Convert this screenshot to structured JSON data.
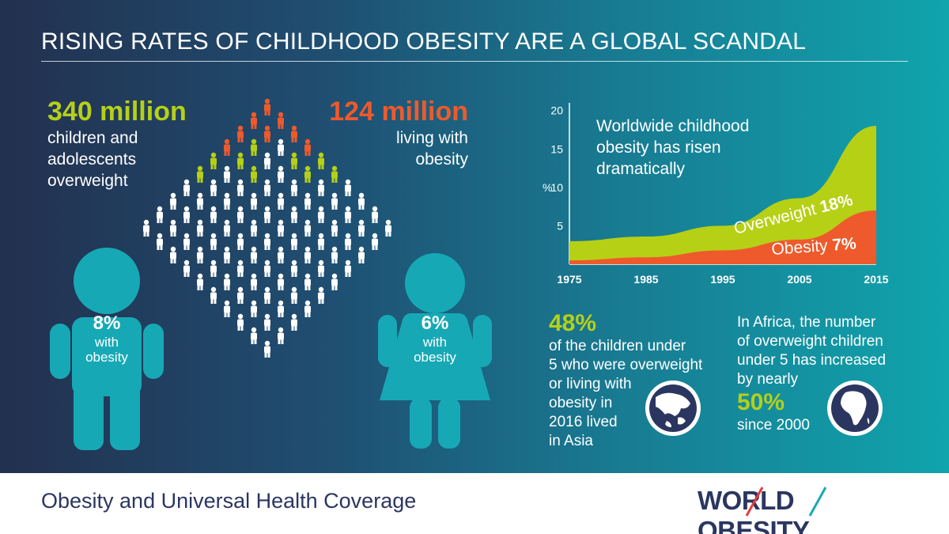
{
  "title": "RISING RATES OF CHILDHOOD OBESITY ARE A GLOBAL SCANDAL",
  "colors": {
    "overweight": "#b6d016",
    "obesity": "#ee5a2b",
    "figure": "#16a9b5",
    "navy": "#2b3660"
  },
  "overweight_stat": {
    "value": "340 million",
    "line1": "children and",
    "line2": "adolescents",
    "line3": "overweight"
  },
  "obesity_stat": {
    "value": "124 million",
    "line1": "living with",
    "line2": "obesity"
  },
  "boy": {
    "icon": "boy-figure-icon",
    "pct": "8%",
    "line1": "with",
    "line2": "obesity"
  },
  "girl": {
    "icon": "girl-figure-icon",
    "pct": "6%",
    "line1": "with",
    "line2": "obesity"
  },
  "chart_data": {
    "type": "area",
    "caption_line1": "Worldwide childhood",
    "caption_line2": "obesity has risen",
    "caption_line3": "dramatically",
    "ylabel": "%",
    "x": [
      1975,
      1985,
      1995,
      2005,
      2015
    ],
    "xticks": [
      "1975",
      "1985",
      "1995",
      "2005",
      "2015"
    ],
    "yticks": [
      "5",
      "10",
      "15",
      "20"
    ],
    "ylim": [
      0,
      21
    ],
    "series": [
      {
        "name": "Overweight",
        "label": "18%",
        "values": [
          3,
          3.6,
          5.0,
          8.6,
          18
        ]
      },
      {
        "name": "Obesity",
        "label": "7%",
        "values": [
          0.5,
          0.9,
          1.8,
          3.2,
          7
        ]
      }
    ]
  },
  "asia_stat": {
    "value": "48%",
    "line1": "of the children under",
    "line2": "5 who were overweight",
    "line3": "or living with",
    "line4": "obesity in",
    "line5": "2016 lived",
    "line6": "in Asia"
  },
  "africa_stat": {
    "line1": "In Africa, the number",
    "line2": "of overweight children",
    "line3": "under 5 has increased",
    "line4": "by nearly",
    "value": "50%",
    "line5": "since 2000"
  },
  "footer": {
    "text": "Obesity and Universal Health Coverage",
    "logo": "WORLD OBESITY"
  }
}
